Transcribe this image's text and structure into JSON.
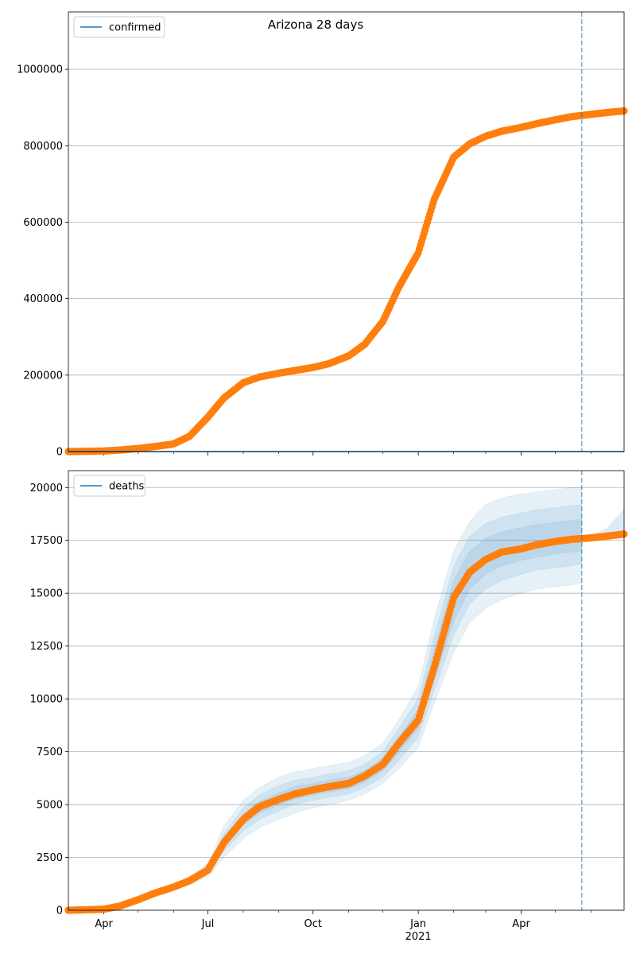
{
  "figure": {
    "title": "Arizona 28 days"
  },
  "colors": {
    "model_line": "#1f77b4",
    "observed": "#ff7f0e",
    "band": "#1f77b4",
    "forecast_marker": "#1f77b4",
    "grid": "#b0b0b0"
  },
  "x_axis": {
    "start": "2020-03-01",
    "end": "2021-06-30",
    "forecast_date": "2021-05-24",
    "month_ticks": [
      "2020-04-01",
      "2020-07-01",
      "2020-10-01",
      "2021-01-01",
      "2021-04-01"
    ],
    "month_labels": [
      "Apr",
      "Jul",
      "Oct",
      "Jan",
      "Apr"
    ],
    "year_label": "2021"
  },
  "chart_data": [
    {
      "type": "line",
      "legend": [
        "confirmed"
      ],
      "legend_position": "top-left",
      "grid": "y",
      "ylim": [
        0,
        1150000
      ],
      "yticks": [
        0,
        200000,
        400000,
        600000,
        800000,
        1000000
      ],
      "ytick_labels": [
        "0",
        "200000",
        "400000",
        "600000",
        "800000",
        "1000000"
      ],
      "series": [
        {
          "name": "confirmed",
          "style": "orange markers",
          "x": [
            "2020-03-01",
            "2020-04-01",
            "2020-04-15",
            "2020-05-01",
            "2020-05-15",
            "2020-06-01",
            "2020-06-15",
            "2020-07-01",
            "2020-07-15",
            "2020-08-01",
            "2020-08-15",
            "2020-09-01",
            "2020-09-15",
            "2020-10-01",
            "2020-10-15",
            "2020-11-01",
            "2020-11-15",
            "2020-12-01",
            "2020-12-15",
            "2021-01-01",
            "2021-01-15",
            "2021-02-01",
            "2021-02-15",
            "2021-03-01",
            "2021-03-15",
            "2021-04-01",
            "2021-04-15",
            "2021-05-01",
            "2021-05-15",
            "2021-06-01",
            "2021-06-15",
            "2021-06-30"
          ],
          "y": [
            0,
            1500,
            4000,
            8000,
            13000,
            20000,
            40000,
            90000,
            140000,
            180000,
            195000,
            205000,
            212000,
            220000,
            230000,
            250000,
            280000,
            340000,
            430000,
            520000,
            660000,
            770000,
            805000,
            825000,
            838000,
            848000,
            858000,
            868000,
            876000,
            882000,
            887000,
            891000
          ]
        },
        {
          "name": "model",
          "style": "blue line",
          "x": [
            "2020-03-01",
            "2021-06-30"
          ],
          "y": [
            0,
            0
          ]
        }
      ]
    },
    {
      "type": "area",
      "legend": [
        "deaths"
      ],
      "legend_position": "top-left",
      "grid": "y",
      "ylim": [
        0,
        20800
      ],
      "yticks": [
        0,
        2500,
        5000,
        7500,
        10000,
        12500,
        15000,
        17500,
        20000
      ],
      "ytick_labels": [
        "0",
        "2500",
        "5000",
        "7500",
        "10000",
        "12500",
        "15000",
        "17500",
        "20000"
      ],
      "series": [
        {
          "name": "deaths",
          "style": "orange markers",
          "x": [
            "2020-03-01",
            "2020-04-01",
            "2020-04-15",
            "2020-05-01",
            "2020-05-15",
            "2020-06-01",
            "2020-06-15",
            "2020-07-01",
            "2020-07-15",
            "2020-08-01",
            "2020-08-15",
            "2020-09-01",
            "2020-09-15",
            "2020-10-01",
            "2020-10-15",
            "2020-11-01",
            "2020-11-15",
            "2020-12-01",
            "2020-12-15",
            "2021-01-01",
            "2021-01-15",
            "2021-02-01",
            "2021-02-15",
            "2021-03-01",
            "2021-03-15",
            "2021-04-01",
            "2021-04-15",
            "2021-05-01",
            "2021-05-15",
            "2021-06-01",
            "2021-06-15",
            "2021-06-30"
          ],
          "y": [
            0,
            50,
            200,
            500,
            800,
            1100,
            1400,
            1900,
            3200,
            4300,
            4900,
            5250,
            5500,
            5700,
            5850,
            6000,
            6350,
            6900,
            7900,
            9000,
            11500,
            14800,
            16000,
            16600,
            16950,
            17100,
            17300,
            17450,
            17550,
            17620,
            17700,
            17800
          ]
        }
      ],
      "bands": [
        {
          "level": "outer",
          "x": [
            "2020-06-15",
            "2020-07-01",
            "2020-07-15",
            "2020-08-01",
            "2020-08-15",
            "2020-09-01",
            "2020-09-15",
            "2020-10-01",
            "2020-10-15",
            "2020-11-01",
            "2020-11-15",
            "2020-12-01",
            "2020-12-15",
            "2021-01-01",
            "2021-01-15",
            "2021-02-01",
            "2021-02-15",
            "2021-03-01",
            "2021-03-15",
            "2021-04-01",
            "2021-04-15",
            "2021-05-01",
            "2021-05-15",
            "2021-05-24"
          ],
          "lower": [
            1200,
            1600,
            2500,
            3400,
            3900,
            4300,
            4600,
            4850,
            5000,
            5200,
            5500,
            6000,
            6700,
            7700,
            9800,
            12200,
            13600,
            14300,
            14700,
            15000,
            15200,
            15300,
            15400,
            15450
          ],
          "upper": [
            1600,
            2200,
            4000,
            5200,
            5800,
            6300,
            6550,
            6700,
            6850,
            7000,
            7300,
            7900,
            9000,
            10600,
            13800,
            17000,
            18400,
            19200,
            19500,
            19700,
            19800,
            19900,
            20000,
            20000
          ]
        },
        {
          "level": "middle",
          "x": [
            "2020-06-15",
            "2020-07-01",
            "2020-07-15",
            "2020-08-01",
            "2020-08-15",
            "2020-09-01",
            "2020-09-15",
            "2020-10-01",
            "2020-10-15",
            "2020-11-01",
            "2020-11-15",
            "2020-12-01",
            "2020-12-15",
            "2021-01-01",
            "2021-01-15",
            "2021-02-01",
            "2021-02-15",
            "2021-03-01",
            "2021-03-15",
            "2021-04-01",
            "2021-04-15",
            "2021-05-01",
            "2021-05-15",
            "2021-05-24"
          ],
          "lower": [
            1300,
            1750,
            2800,
            3750,
            4300,
            4700,
            5000,
            5200,
            5350,
            5500,
            5800,
            6300,
            7100,
            8200,
            10400,
            13000,
            14500,
            15200,
            15600,
            15900,
            16100,
            16200,
            16300,
            16400
          ],
          "upper": [
            1500,
            2050,
            3600,
            4850,
            5450,
            5900,
            6150,
            6300,
            6450,
            6600,
            6900,
            7500,
            8600,
            10000,
            13000,
            16300,
            17700,
            18300,
            18600,
            18800,
            18950,
            19050,
            19150,
            19200
          ]
        },
        {
          "level": "inner",
          "x": [
            "2020-06-15",
            "2020-07-01",
            "2020-07-15",
            "2020-08-01",
            "2020-08-15",
            "2020-09-01",
            "2020-09-15",
            "2020-10-01",
            "2020-10-15",
            "2020-11-01",
            "2020-11-15",
            "2020-12-01",
            "2020-12-15",
            "2021-01-01",
            "2021-01-15",
            "2021-02-01",
            "2021-02-15",
            "2021-03-01",
            "2021-03-15",
            "2021-04-01",
            "2021-04-15",
            "2021-05-01",
            "2021-05-15",
            "2021-05-24"
          ],
          "lower": [
            1350,
            1850,
            3000,
            4050,
            4600,
            5000,
            5250,
            5450,
            5600,
            5750,
            6050,
            6600,
            7450,
            8600,
            10900,
            13700,
            15200,
            15900,
            16300,
            16550,
            16700,
            16850,
            16950,
            17000
          ],
          "upper": [
            1450,
            1950,
            3400,
            4550,
            5150,
            5550,
            5850,
            6000,
            6150,
            6300,
            6600,
            7200,
            8200,
            9500,
            12400,
            15600,
            17000,
            17600,
            17900,
            18100,
            18250,
            18350,
            18450,
            18500
          ]
        }
      ],
      "forecast_band": {
        "x": [
          "2021-05-24",
          "2021-06-01",
          "2021-06-15",
          "2021-06-30"
        ],
        "lower": [
          17500,
          17550,
          17700,
          17950
        ],
        "upper": [
          17500,
          17700,
          18100,
          19000
        ]
      }
    }
  ]
}
